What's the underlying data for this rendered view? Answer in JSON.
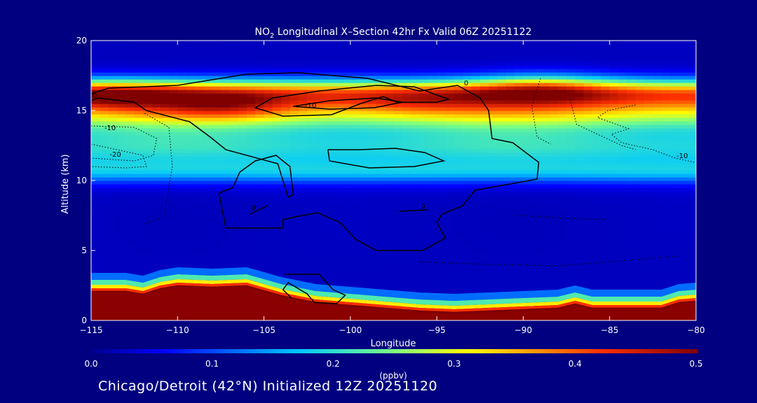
{
  "title_prefix": "NO",
  "title_sub": "2",
  "title_rest": " Longitudinal X–Section 42hr  Fx Valid 06Z 20251122",
  "footer": "Chicago/Detroit (42°N) Initialized 12Z 20251120",
  "colors": {
    "background": "#000080",
    "text": "#ffffff",
    "contour": "#000000",
    "terrain": "#8b0000"
  },
  "chart_data": {
    "type": "heatmap",
    "title": "NO2 Longitudinal X–Section 42hr  Fx Valid 06Z 20251122",
    "xlabel": "Longitude",
    "ylabel": "Altitude (km)",
    "xlim": [
      -115,
      -80
    ],
    "ylim": [
      0,
      20
    ],
    "x_ticks": [
      -115,
      -110,
      -105,
      -100,
      -95,
      -90,
      -85,
      -80
    ],
    "x_tick_labels": [
      "−115",
      "−110",
      "−105",
      "−100",
      "−95",
      "−90",
      "−85",
      "−80"
    ],
    "y_ticks": [
      0,
      5,
      10,
      15,
      20
    ],
    "y_tick_labels": [
      "0",
      "5",
      "10",
      "15",
      "20"
    ],
    "colorbar": {
      "label": "(ppbv)",
      "range": [
        0.0,
        0.5
      ],
      "ticks": [
        0.0,
        0.1,
        0.2,
        0.3,
        0.4,
        0.5
      ],
      "tick_labels": [
        "0.0",
        "0.1",
        "0.2",
        "0.3",
        "0.4",
        "0.5"
      ],
      "colormap": "jet"
    },
    "field_model": {
      "description_of_bands": [
        {
          "center_km": 16.3,
          "width_km": 1.0,
          "peak_ppbv": 0.31
        },
        {
          "center_km": 15.0,
          "width_km": 1.3,
          "peak_ppbv": 0.25
        },
        {
          "center_km": 12.4,
          "width_km": 1.8,
          "peak_ppbv": 0.17
        },
        {
          "center_km": 10.6,
          "width_km": 0.8,
          "peak_ppbv": 0.09
        }
      ],
      "hotspots": [
        {
          "lon": -114,
          "alt": 16.2,
          "peak_ppbv": 0.08
        },
        {
          "lon": -107,
          "alt": 15.3,
          "peak_ppbv": 0.08
        },
        {
          "lon": -89,
          "alt": 16.8,
          "peak_ppbv": 0.1
        },
        {
          "lon": -97,
          "alt": 15.6,
          "peak_ppbv": 0.04
        }
      ],
      "background_ppbv": 0.025
    },
    "terrain_km": [
      [
        -115,
        2.0
      ],
      [
        -113,
        2.0
      ],
      [
        -112,
        1.8
      ],
      [
        -111,
        2.2
      ],
      [
        -110,
        2.4
      ],
      [
        -108,
        2.3
      ],
      [
        -106,
        2.4
      ],
      [
        -104,
        1.7
      ],
      [
        -102,
        1.2
      ],
      [
        -100,
        1.0
      ],
      [
        -98,
        0.8
      ],
      [
        -96,
        0.6
      ],
      [
        -94,
        0.5
      ],
      [
        -92,
        0.6
      ],
      [
        -90,
        0.7
      ],
      [
        -88,
        0.8
      ],
      [
        -87,
        1.1
      ],
      [
        -86,
        0.8
      ],
      [
        -84,
        0.8
      ],
      [
        -82,
        0.8
      ],
      [
        -81,
        1.2
      ],
      [
        -80,
        1.3
      ]
    ],
    "contours": [
      {
        "label": "0",
        "style": "solid",
        "label_at": [
          -114.8,
          15.9
        ],
        "points": [
          [
            -115,
            16.2
          ],
          [
            -114,
            16.6
          ],
          [
            -110,
            16.8
          ],
          [
            -106,
            17.6
          ],
          [
            -103,
            17.7
          ],
          [
            -99,
            17.3
          ],
          [
            -96,
            16.4
          ],
          [
            -93.8,
            16.8
          ],
          [
            -92.5,
            15.9
          ],
          [
            -92,
            15.0
          ],
          [
            -91.8,
            13.0
          ],
          [
            -90.6,
            12.7
          ],
          [
            -89.1,
            11.3
          ],
          [
            -89.2,
            10.1
          ],
          [
            -91,
            9.7
          ],
          [
            -92.8,
            9.3
          ],
          [
            -93.5,
            8.2
          ],
          [
            -94.7,
            7.6
          ],
          [
            -95,
            7.0
          ],
          [
            -94.5,
            5.9
          ],
          [
            -95.8,
            5.0
          ],
          [
            -98.5,
            5.0
          ],
          [
            -99.7,
            5.8
          ],
          [
            -100.6,
            7.0
          ],
          [
            -101.9,
            7.7
          ],
          [
            -103.2,
            7.4
          ],
          [
            -103.9,
            7.2
          ],
          [
            -103.9,
            6.6
          ],
          [
            -106,
            6.6
          ],
          [
            -107.2,
            6.6
          ],
          [
            -107.4,
            7.8
          ],
          [
            -107.6,
            9.1
          ],
          [
            -106.8,
            9.5
          ],
          [
            -106.4,
            10.6
          ],
          [
            -105.5,
            11.4
          ],
          [
            -104.3,
            11.8
          ],
          [
            -103.5,
            11.0
          ],
          [
            -103.3,
            9.0
          ],
          [
            -103.6,
            8.8
          ],
          [
            -104.2,
            11.2
          ],
          [
            -107.2,
            12.2
          ],
          [
            -108.1,
            13.1
          ],
          [
            -109.3,
            14.2
          ],
          [
            -111.8,
            15.0
          ],
          [
            -112.5,
            15.6
          ],
          [
            -114.6,
            15.9
          ],
          [
            -115,
            15.7
          ]
        ]
      },
      {
        "label": "0",
        "style": "solid",
        "label_at": [
          -93.3,
          16.8
        ],
        "points": [
          [
            -101.1,
            14.7
          ],
          [
            -99.4,
            15.5
          ],
          [
            -98.1,
            16.0
          ],
          [
            -97.3,
            15.6
          ],
          [
            -95,
            15.6
          ],
          [
            -94.3,
            15.8
          ],
          [
            -96.3,
            16.7
          ],
          [
            -98.5,
            16.8
          ],
          [
            -101.8,
            16.4
          ],
          [
            -104.5,
            15.9
          ],
          [
            -105.5,
            15.2
          ],
          [
            -103.9,
            14.6
          ],
          [
            -101.1,
            14.7
          ]
        ]
      },
      {
        "label": "-10",
        "style": "solid",
        "label_at": [
          -102.3,
          15.2
        ],
        "points": [
          [
            -103.3,
            15.3
          ],
          [
            -101.2,
            15.7
          ],
          [
            -98.5,
            15.9
          ],
          [
            -97,
            15.6
          ],
          [
            -98.6,
            15.2
          ],
          [
            -101.2,
            15.1
          ],
          [
            -103.3,
            15.3
          ]
        ]
      },
      {
        "label": "",
        "style": "solid",
        "label_at": null,
        "points": [
          [
            -101.3,
            12.2
          ],
          [
            -101.2,
            11.4
          ],
          [
            -98.9,
            10.9
          ],
          [
            -96.3,
            11.0
          ],
          [
            -94.6,
            11.4
          ],
          [
            -95.7,
            12.0
          ],
          [
            -97.4,
            12.3
          ],
          [
            -99.5,
            12.2
          ],
          [
            -101.3,
            12.2
          ]
        ]
      },
      {
        "label": "0",
        "style": "solid",
        "label_at": [
          -95.8,
          8.0
        ],
        "points": [
          [
            -97.2,
            7.8
          ],
          [
            -95.5,
            7.9
          ]
        ]
      },
      {
        "label": "0",
        "style": "solid",
        "label_at": [
          -105.6,
          7.9
        ],
        "points": [
          [
            -105.8,
            7.6
          ],
          [
            -104.8,
            8.2
          ]
        ]
      },
      {
        "label": "",
        "style": "solid",
        "label_at": null,
        "points": [
          [
            -103.8,
            3.3
          ],
          [
            -101.8,
            3.3
          ],
          [
            -101.0,
            2.2
          ],
          [
            -100.3,
            1.8
          ],
          [
            -100.8,
            1.2
          ],
          [
            -102.1,
            1.3
          ],
          [
            -102.5,
            1.9
          ],
          [
            -103.6,
            2.7
          ],
          [
            -103.9,
            2.2
          ],
          [
            -103.4,
            1.6
          ]
        ]
      },
      {
        "label": "-10",
        "style": "dotted",
        "label_at": [
          -113.9,
          13.6
        ],
        "points": [
          [
            -115,
            13.9
          ],
          [
            -112.5,
            13.8
          ],
          [
            -111.2,
            13.0
          ],
          [
            -111.4,
            11.8
          ],
          [
            -112.5,
            11.4
          ],
          [
            -115,
            11.6
          ]
        ]
      },
      {
        "label": "-20",
        "style": "dotted",
        "label_at": [
          -113.6,
          11.7
        ],
        "points": [
          [
            -115,
            12.6
          ],
          [
            -113.5,
            12.2
          ],
          [
            -112.0,
            11.8
          ],
          [
            -111.8,
            11.0
          ],
          [
            -113,
            10.9
          ],
          [
            -115,
            11.0
          ]
        ]
      },
      {
        "label": "",
        "style": "dotted",
        "label_at": null,
        "points": [
          [
            -111.9,
            14.8
          ],
          [
            -110.5,
            13.8
          ],
          [
            -110.3,
            11.0
          ],
          [
            -110.8,
            7.4
          ],
          [
            -111.9,
            6.9
          ]
        ]
      },
      {
        "label": "",
        "style": "dotted",
        "label_at": null,
        "points": [
          [
            -89,
            17.3
          ],
          [
            -89.5,
            15.3
          ],
          [
            -89.2,
            13.1
          ],
          [
            -88.4,
            12.6
          ]
        ]
      },
      {
        "label": "",
        "style": "dotted",
        "label_at": null,
        "points": [
          [
            -87.3,
            15.8
          ],
          [
            -86.9,
            14.0
          ],
          [
            -84.3,
            12.5
          ],
          [
            -83.5,
            12.2
          ]
        ]
      },
      {
        "label": "-10",
        "style": "dotted",
        "label_at": [
          -80.8,
          11.6
        ],
        "points": [
          [
            -83.5,
            15.4
          ],
          [
            -85.1,
            15.0
          ],
          [
            -85.7,
            14.5
          ],
          [
            -83.9,
            13.7
          ],
          [
            -84.9,
            13.3
          ],
          [
            -84.3,
            12.7
          ],
          [
            -82.5,
            12.2
          ],
          [
            -81.2,
            11.6
          ],
          [
            -80.1,
            11.3
          ]
        ]
      },
      {
        "label": "",
        "style": "dotted",
        "label_at": null,
        "points": [
          [
            -90.3,
            7.5
          ],
          [
            -87.5,
            7.3
          ],
          [
            -85.2,
            7.2
          ]
        ]
      },
      {
        "label": "",
        "style": "dotted",
        "label_at": null,
        "points": [
          [
            -96,
            4.2
          ],
          [
            -92,
            4.0
          ],
          [
            -88,
            3.9
          ],
          [
            -84,
            4.3
          ],
          [
            -81,
            4.6
          ]
        ]
      }
    ]
  }
}
